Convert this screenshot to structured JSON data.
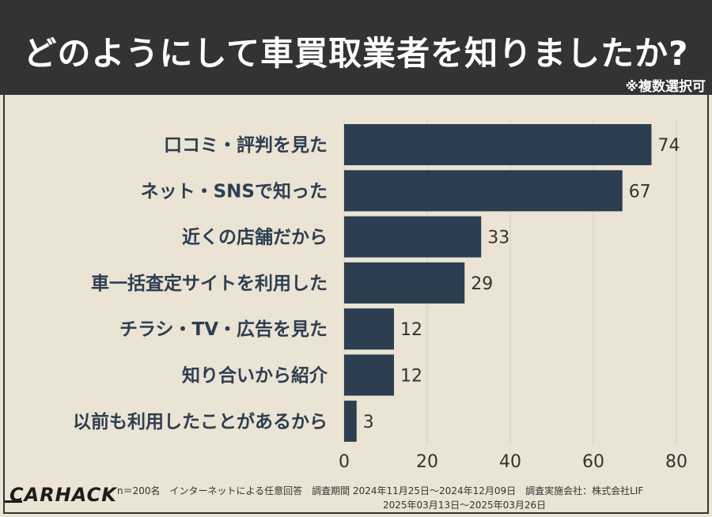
{
  "header": {
    "title": "どのようにして車買取業者を知りましたか?",
    "note": "※複数選択可"
  },
  "footer": {
    "logo": "CARHACK",
    "line1": "n＝200名　インターネットによる任意回答　調査期間 2024年11月25日～2024年12月09日　調査実施会社：株式会社LIF",
    "line2": "2025年03月13日～2025年03月26日"
  },
  "colors": {
    "bar": "#2c3e50",
    "header_bg": "#333333",
    "background": "#ebe3d3"
  },
  "chart_data": {
    "type": "bar",
    "orientation": "horizontal",
    "categories": [
      "口コミ・評判を見た",
      "ネット・SNSで知った",
      "近くの店舗だから",
      "車一括査定サイトを利用した",
      "チラシ・TV・広告を見た",
      "知り合いから紹介",
      "以前も利用したことがあるから"
    ],
    "values": [
      74,
      67,
      33,
      29,
      12,
      12,
      3
    ],
    "xlim": [
      0,
      80
    ],
    "xticks": [
      0,
      20,
      40,
      60,
      80
    ],
    "grid": true,
    "title": "",
    "xlabel": "",
    "ylabel": ""
  }
}
